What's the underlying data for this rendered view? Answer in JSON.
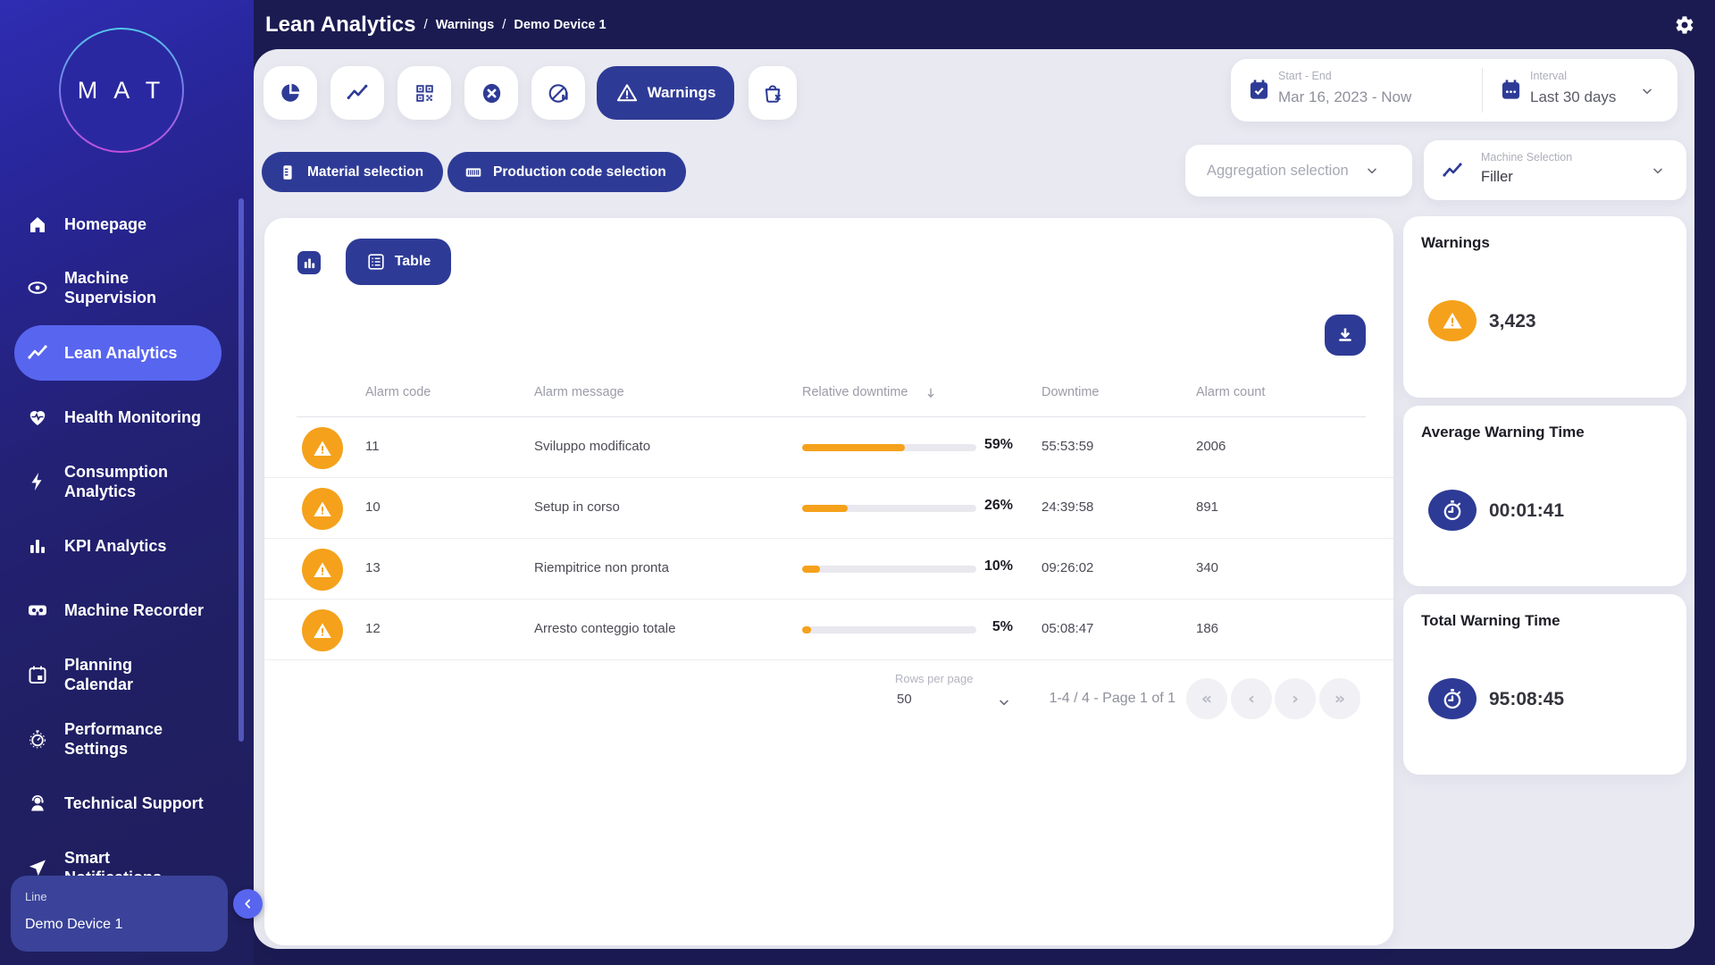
{
  "colors": {
    "accent_blue": "#2e3b96",
    "active_item_blue": "#5865ef",
    "warning_orange": "#f5a11b",
    "navy_background": "#1b1b52",
    "content_background": "#e9e9f1"
  },
  "header": {
    "title": "Lean Analytics",
    "breadcrumb_separator": "/",
    "breadcrumbs": [
      "Warnings",
      "Demo Device 1"
    ]
  },
  "sidebar": {
    "logo_text": "M A T",
    "items": [
      {
        "label": "Homepage",
        "icon": "home-icon"
      },
      {
        "label": "Machine\nSupervision",
        "icon": "eye-icon"
      },
      {
        "label": "Lean Analytics",
        "icon": "trend-line-icon",
        "active": true
      },
      {
        "label": "Health Monitoring",
        "icon": "heart-pulse-icon"
      },
      {
        "label": "Consumption\nAnalytics",
        "icon": "lightning-bolt-icon"
      },
      {
        "label": "KPI Analytics",
        "icon": "bar-chart-icon"
      },
      {
        "label": "Machine Recorder",
        "icon": "recorder-icon"
      },
      {
        "label": "Planning\nCalendar",
        "icon": "calendar-icon"
      },
      {
        "label": "Performance\nSettings",
        "icon": "stopwatch-icon"
      },
      {
        "label": "Technical Support",
        "icon": "support-agent-icon"
      },
      {
        "label": "Smart\nNotifications",
        "icon": "paper-plane-icon"
      }
    ],
    "device_panel": {
      "label": "Line",
      "value": "Demo Device 1"
    }
  },
  "toolbar": {
    "icons": [
      "pie-chart-icon",
      "trend-line-icon",
      "qr-code-icon",
      "x-circle-icon",
      "chart-off-icon",
      "warning-triangle-icon",
      "bag-x-icon"
    ],
    "active_tab_label": "Warnings",
    "date_range": {
      "label": "Start - End",
      "value": "Mar 16, 2023 - Now"
    },
    "interval": {
      "label": "Interval",
      "value": "Last 30 days"
    }
  },
  "filters": {
    "material_button": "Material selection",
    "production_button": "Production code selection",
    "aggregation_placeholder": "Aggregation selection",
    "machine_selection": {
      "label": "Machine Selection",
      "value": "Filler"
    }
  },
  "view_toggle": {
    "table_label": "Table"
  },
  "table": {
    "headers": {
      "alarm_code": "Alarm code",
      "alarm_message": "Alarm message",
      "relative_downtime": "Relative downtime",
      "downtime": "Downtime",
      "alarm_count": "Alarm count"
    },
    "sorted_by": "relative_downtime",
    "sort_direction": "desc",
    "rows": [
      {
        "alarm_code": "11",
        "alarm_message": "Sviluppo modificato",
        "relative_downtime": "59%",
        "relative_downtime_value": 59,
        "downtime": "55:53:59",
        "alarm_count": "2006"
      },
      {
        "alarm_code": "10",
        "alarm_message": "Setup in corso",
        "relative_downtime": "26%",
        "relative_downtime_value": 26,
        "downtime": "24:39:58",
        "alarm_count": "891"
      },
      {
        "alarm_code": "13",
        "alarm_message": "Riempitrice non pronta",
        "relative_downtime": "10%",
        "relative_downtime_value": 10,
        "downtime": "09:26:02",
        "alarm_count": "340"
      },
      {
        "alarm_code": "12",
        "alarm_message": "Arresto conteggio totale",
        "relative_downtime": "5%",
        "relative_downtime_value": 5,
        "downtime": "05:08:47",
        "alarm_count": "186"
      }
    ]
  },
  "pagination": {
    "rows_per_page_label": "Rows per page",
    "rows_per_page_value": "50",
    "range_summary": "1-4 / 4 - Page 1 of 1",
    "buttons": [
      "first-page-icon",
      "previous-page-icon",
      "next-page-icon",
      "last-page-icon"
    ]
  },
  "summary_cards": [
    {
      "title": "Warnings",
      "value": "3,423",
      "icon": "warning-triangle-icon",
      "icon_color": "#f5a11b"
    },
    {
      "title": "Average Warning Time",
      "value": "00:01:41",
      "icon": "stopwatch-icon",
      "icon_color": "#2e3b96"
    },
    {
      "title": "Total Warning Time",
      "value": "95:08:45",
      "icon": "stopwatch-icon",
      "icon_color": "#2e3b96"
    }
  ]
}
